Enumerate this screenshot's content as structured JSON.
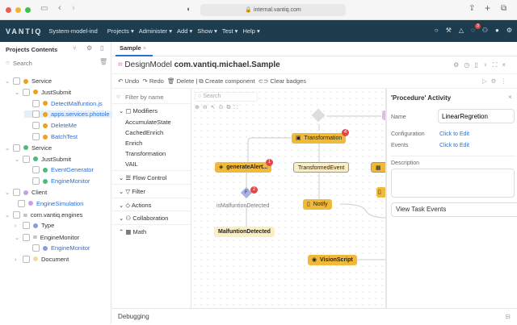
{
  "browser": {
    "url": "internal.vantiq.com"
  },
  "nav": {
    "logo": "VANTIQ",
    "namespace": "System-model-ind",
    "menus": [
      "Projects ▾",
      "Administer ▾",
      "Add ▾",
      "Show ▾",
      "Test ▾",
      "Help ▾"
    ],
    "notification_count": "3"
  },
  "sidebar": {
    "title": "Projects Contents",
    "search_placeholder": "Search",
    "items": [
      {
        "label": "Service",
        "color": "#f0a020",
        "link": false
      },
      {
        "label": "JustSubmit",
        "color": "#f0a020",
        "link": false
      },
      {
        "label": "DetectMalfuntion.js",
        "color": "#f0a020",
        "link": true
      },
      {
        "label": "apps.services.photole",
        "color": "#f0a020",
        "link": true
      },
      {
        "label": "DeleteMe",
        "color": "#f0a020",
        "link": true
      },
      {
        "label": "BatchTest",
        "color": "#f0a020",
        "link": true
      },
      {
        "label": "Service",
        "color": "#4cbb7a",
        "link": false
      },
      {
        "label": "JustSubmit",
        "color": "#4cbb7a",
        "link": false
      },
      {
        "label": "EventGenerator",
        "color": "#4cbb7a",
        "link": true
      },
      {
        "label": "EngineMonitor",
        "color": "#4cbb7a",
        "link": true
      },
      {
        "label": "Client",
        "color": "#c9a0e8",
        "link": false
      },
      {
        "label": "EngineSimulation",
        "color": "#c9a0e8",
        "link": true
      },
      {
        "label": "com.vantiq.engines",
        "color": "",
        "link": false
      },
      {
        "label": "Type",
        "color": "#8f9bd8",
        "link": false
      },
      {
        "label": "EngineMonitor",
        "color": "",
        "link": false
      },
      {
        "label": "EngineMonitor",
        "color": "#8f9bd8",
        "link": true
      },
      {
        "label": "Document",
        "color": "#f4dca0",
        "link": false
      }
    ]
  },
  "tabs": [
    {
      "label": "Sample"
    }
  ],
  "editor": {
    "type": "DesignModel",
    "name": "com.vantiq.michael.Sample"
  },
  "toolbar": {
    "undo": "Undo",
    "redo": "Redo",
    "delete": "Delete",
    "create_component": "Create component",
    "clear_badges": "Clear badges"
  },
  "palette": {
    "filter_placeholder": "Filter by name",
    "modifiers": "Modifiers",
    "modifier_items": [
      "AccumulateState",
      "CachedEnrich",
      "Enrich",
      "Transformation",
      "VAIL"
    ],
    "sections": [
      "Flow Control",
      "Filter",
      "Actions",
      "Collaboration",
      "Math"
    ]
  },
  "canvas": {
    "search_placeholder": "Search",
    "nodes": {
      "transformation": "Transformation",
      "generate_alert": "generateAlert...",
      "transformed_event": "TransformedEvent",
      "notify": "Notify",
      "is_malfunction": "isMalfuntionDetected",
      "malfunction_detected": "MalfuntionDetected",
      "vision_script": "VisionScript",
      "filter_glyph": "F"
    },
    "badges": {
      "transformation": "4",
      "generate_alert": "1",
      "is_malfunction": "2"
    }
  },
  "properties": {
    "title": "'Procedure' Activity",
    "name_label": "Name",
    "name_value": "LinearRegretion",
    "config_label": "Configuration",
    "config_value": "Click to Edit",
    "events_label": "Events",
    "events_value": "Click to Edit",
    "description_label": "Description",
    "view_events": "View Task Events"
  },
  "debug": {
    "label": "Debugging"
  }
}
